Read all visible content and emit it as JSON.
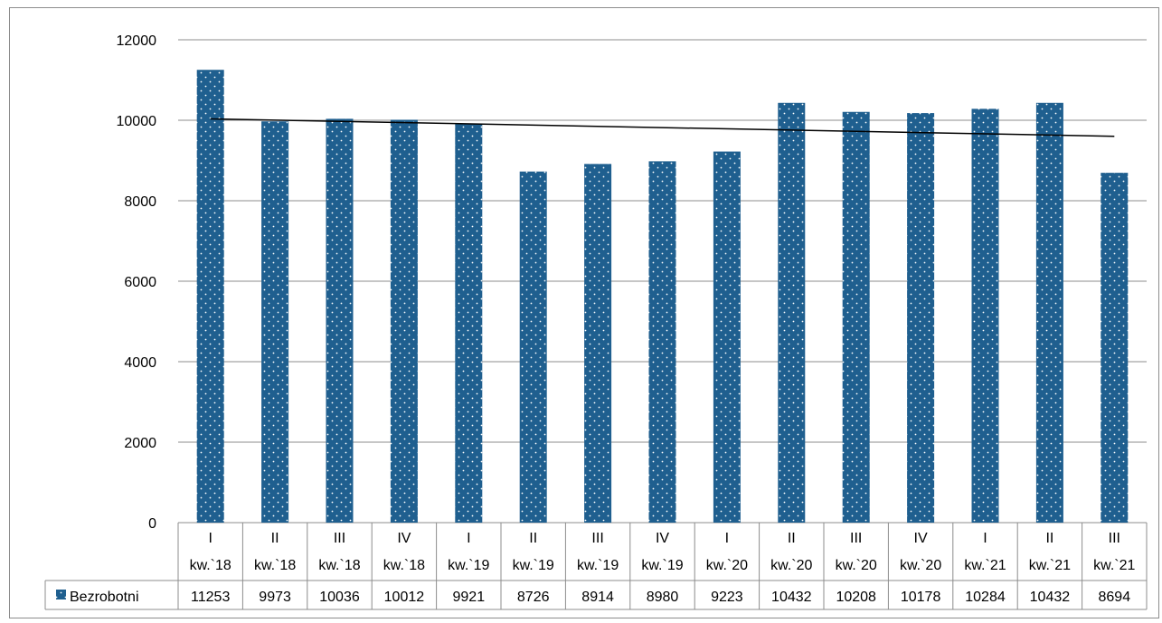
{
  "chart_data": {
    "type": "bar",
    "categories": [
      [
        "I",
        "kw.`18"
      ],
      [
        "II",
        "kw.`18"
      ],
      [
        "III",
        "kw.`18"
      ],
      [
        "IV",
        "kw.`18"
      ],
      [
        "I",
        "kw.`19"
      ],
      [
        "II",
        "kw.`19"
      ],
      [
        "III",
        "kw.`19"
      ],
      [
        "IV",
        "kw.`19"
      ],
      [
        "I",
        "kw.`20"
      ],
      [
        "II",
        "kw.`20"
      ],
      [
        "III",
        "kw.`20"
      ],
      [
        "IV",
        "kw.`20"
      ],
      [
        "I",
        "kw.`21"
      ],
      [
        "II",
        "kw.`21"
      ],
      [
        "III",
        "kw.`21"
      ]
    ],
    "series": [
      {
        "name": "Bezrobotni",
        "values": [
          11253,
          9973,
          10036,
          10012,
          9921,
          8726,
          8914,
          8980,
          9223,
          10432,
          10208,
          10178,
          10284,
          10432,
          8694
        ]
      }
    ],
    "yticks": [
      0,
      2000,
      4000,
      6000,
      8000,
      10000,
      12000
    ],
    "ylim": [
      0,
      12000
    ],
    "trendline": "linear",
    "data_table": true,
    "grid": true,
    "colors": {
      "bar": "#1f5f8f",
      "dots": "#ffffff",
      "trend": "#000000",
      "grid": "#8c8c8c",
      "frame": "#8c8c8c"
    }
  }
}
